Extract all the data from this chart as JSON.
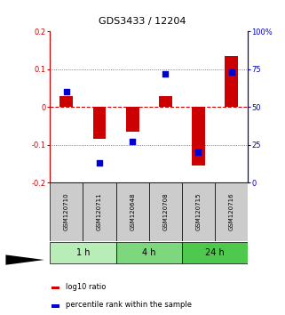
{
  "title": "GDS3433 / 12204",
  "samples": [
    "GSM120710",
    "GSM120711",
    "GSM120648",
    "GSM120708",
    "GSM120715",
    "GSM120716"
  ],
  "log10_ratio": [
    0.03,
    -0.085,
    -0.065,
    0.03,
    -0.155,
    0.135
  ],
  "percentile_rank": [
    60,
    13,
    27,
    72,
    20,
    73
  ],
  "groups": [
    {
      "label": "1 h",
      "indices": [
        0,
        1
      ],
      "color": "#b8edb8"
    },
    {
      "label": "4 h",
      "indices": [
        2,
        3
      ],
      "color": "#7dd87d"
    },
    {
      "label": "24 h",
      "indices": [
        4,
        5
      ],
      "color": "#4ec94e"
    }
  ],
  "bar_color_red": "#cc0000",
  "dot_color_blue": "#0000cc",
  "ylim_left": [
    -0.2,
    0.2
  ],
  "ylim_right": [
    0,
    100
  ],
  "yticks_left": [
    -0.2,
    -0.1,
    0,
    0.1,
    0.2
  ],
  "yticks_right": [
    0,
    25,
    50,
    75,
    100
  ],
  "hline_color": "#cc0000",
  "dotline_color": "#555555",
  "sample_box_color": "#cccccc",
  "background_color": "#ffffff",
  "title_fontsize": 8,
  "tick_fontsize": 6,
  "sample_fontsize": 5,
  "group_fontsize": 7,
  "legend_fontsize": 6,
  "bar_width": 0.4,
  "dot_size": 18
}
